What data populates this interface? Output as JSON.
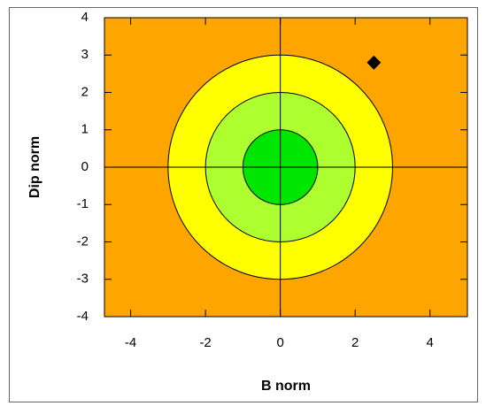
{
  "chart_data": {
    "type": "scatter",
    "x_label": "B norm",
    "y_label": "Dip norm",
    "xlim": [
      -4.7,
      5
    ],
    "ylim": [
      -4,
      4
    ],
    "xticks": [
      -4,
      -2,
      0,
      2,
      4
    ],
    "yticks": [
      -4,
      -3,
      -2,
      -1,
      0,
      1,
      2,
      3,
      4
    ],
    "background": "#ffa500",
    "contours": [
      {
        "radius": 3,
        "color": "#ffff00"
      },
      {
        "radius": 2,
        "color": "#adff2f"
      },
      {
        "radius": 1,
        "color": "#00e600"
      }
    ],
    "reference_lines": {
      "x": 0,
      "y": 0
    },
    "series": [
      {
        "color": "#000000",
        "x": [
          2.5
        ],
        "values": [
          2.8
        ]
      }
    ]
  }
}
